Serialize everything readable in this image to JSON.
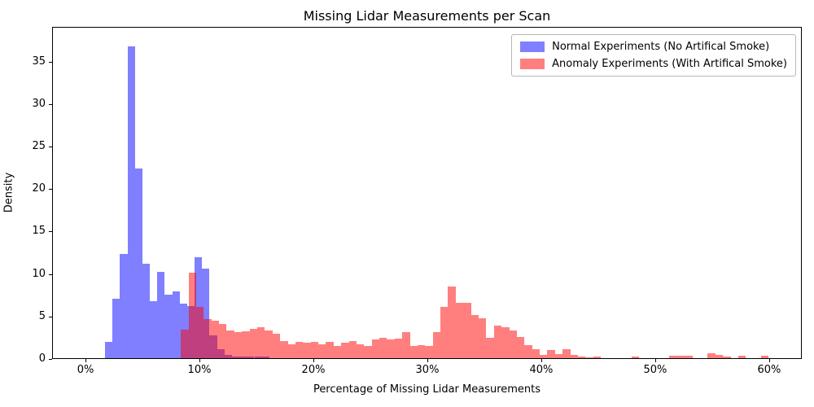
{
  "title": "Missing Lidar Measurements per Scan",
  "xlabel": "Percentage of Missing Lidar Measurements",
  "ylabel": "Density",
  "legend": {
    "items": [
      {
        "label": "Normal Experiments (No Artifical Smoke)",
        "color": "rgba(0,0,255,0.5)"
      },
      {
        "label": "Anomaly Experiments (With Artifical Smoke)",
        "color": "rgba(255,0,0,0.5)"
      }
    ]
  },
  "chart_data": {
    "type": "bar",
    "subtype": "overlapping-density-histogram",
    "title": "Missing Lidar Measurements per Scan",
    "xlabel": "Percentage of Missing Lidar Measurements",
    "ylabel": "Density",
    "xlim": [
      -2.93,
      62.86
    ],
    "ylim": [
      0,
      39.1
    ],
    "grid": false,
    "legend_position": "upper right",
    "x_ticks": [
      {
        "value": 0,
        "label": "0%"
      },
      {
        "value": 10,
        "label": "10%"
      },
      {
        "value": 20,
        "label": "20%"
      },
      {
        "value": 30,
        "label": "30%"
      },
      {
        "value": 40,
        "label": "40%"
      },
      {
        "value": 50,
        "label": "50%"
      },
      {
        "value": 60,
        "label": "60%"
      }
    ],
    "y_ticks": [
      0,
      5,
      10,
      15,
      20,
      25,
      30,
      35
    ],
    "series": [
      {
        "name": "Normal Experiments (No Artifical Smoke)",
        "color": "rgba(0,0,255,0.5)",
        "bin_start_percent": 1.65,
        "bin_width_percent": 0.655,
        "densities": [
          1.9,
          7.0,
          12.3,
          36.7,
          22.3,
          11.1,
          6.7,
          10.2,
          7.5,
          7.9,
          6.4,
          6.1,
          11.9,
          10.5,
          2.7,
          1.1,
          0.35,
          0.2,
          0.2,
          0.2,
          0.2,
          0.2
        ]
      },
      {
        "name": "Anomaly Experiments (With Artifical Smoke)",
        "color": "rgba(255,0,0,0.5)",
        "bin_start_percent": 8.3,
        "bin_width_percent": 0.67,
        "densities": [
          3.4,
          10.05,
          6.06,
          4.6,
          4.45,
          4.0,
          3.3,
          3.1,
          3.2,
          3.45,
          3.66,
          3.24,
          2.92,
          2.06,
          1.65,
          1.9,
          1.84,
          1.9,
          1.65,
          1.9,
          1.42,
          1.84,
          1.97,
          1.65,
          1.42,
          2.16,
          2.4,
          2.2,
          2.3,
          3.1,
          1.4,
          1.55,
          1.4,
          3.05,
          6.06,
          8.45,
          6.54,
          6.5,
          5.05,
          4.65,
          2.4,
          3.85,
          3.65,
          3.3,
          2.5,
          1.55,
          1.05,
          0.4,
          0.95,
          0.5,
          1.1,
          0.35,
          0.15,
          0.1,
          0.15,
          0,
          0,
          0,
          0,
          0.2,
          0,
          0,
          0,
          0,
          0.25,
          0.3,
          0.25,
          0,
          0,
          0.55,
          0.35,
          0.2,
          0,
          0.3,
          0,
          0,
          0.25
        ]
      }
    ]
  }
}
